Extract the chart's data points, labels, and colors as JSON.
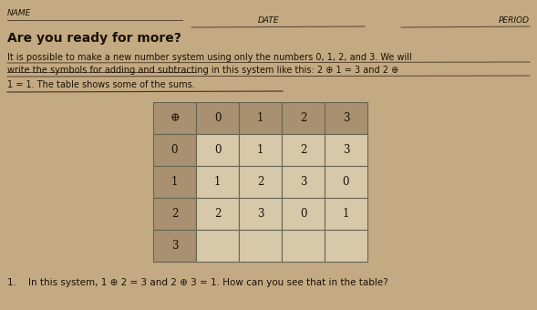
{
  "bg_color": "#c4aa82",
  "paper_highlight": "#d4bc96",
  "heading": "Are you ready for more?",
  "line1": "It is possible to make a new number system using only the numbers 0, 1, 2, and 3. We will",
  "line2a": "write the symbols for adding and subtracting in this system like this: 2 ⊕ 1 = 3 and 2 ⊕",
  "line3": "1 = 1. The table shows some of the sums.",
  "question": "1.    In this system, 1 ⊕ 2 = 3 and 2 ⊕ 3 = 1. How can you see that in the table?",
  "name_label": "NAME",
  "date_label": "DATE",
  "period_label": "PERIOD",
  "table_header_bg": "#a89070",
  "table_cell_bg": "#d8c8aa",
  "table_border_color": "#666655",
  "table_header": [
    "⊕",
    "0",
    "1",
    "2",
    "3"
  ],
  "table_rows": [
    [
      "0",
      "0",
      "1",
      "2",
      "3"
    ],
    [
      "1",
      "1",
      "2",
      "3",
      "0"
    ],
    [
      "2",
      "2",
      "3",
      "0",
      "1"
    ],
    [
      "3",
      "",
      "",
      "",
      ""
    ]
  ],
  "text_color": "#1a1208",
  "line_color": "#554433",
  "underline_color": "#443322"
}
